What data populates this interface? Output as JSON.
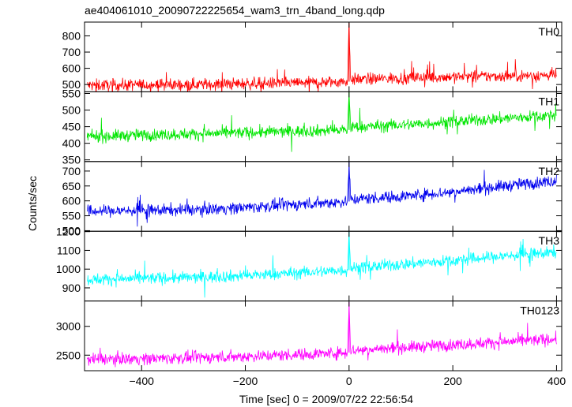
{
  "figure": {
    "title": "ae404061010_20090722225654_wam3_trn_4band_long.qdp",
    "xlabel": "Time [sec] 0 = 2009/07/22 22:56:54",
    "ylabel": "Counts/sec"
  },
  "chart_data": [
    {
      "type": "line",
      "name": "TH0",
      "color": "#ff0000",
      "xlim": [
        -510,
        410
      ],
      "ylim": [
        455,
        885
      ],
      "yticks": [
        500,
        600,
        700,
        800
      ],
      "series": [
        {
          "name": "TH0",
          "x": [
            -500,
            -400,
            -300,
            -200,
            -100,
            -3,
            0,
            3,
            100,
            200,
            300,
            400
          ],
          "values": [
            495,
            498,
            500,
            505,
            510,
            518,
            880,
            530,
            540,
            548,
            552,
            558
          ]
        }
      ]
    },
    {
      "type": "line",
      "name": "TH1",
      "color": "#00e600",
      "xlim": [
        -510,
        410
      ],
      "ylim": [
        345,
        555
      ],
      "yticks": [
        350,
        400,
        450,
        500,
        550
      ],
      "series": [
        {
          "name": "TH1",
          "x": [
            -500,
            -400,
            -300,
            -200,
            -100,
            -3,
            0,
            3,
            100,
            200,
            300,
            400
          ],
          "values": [
            420,
            425,
            428,
            432,
            436,
            440,
            555,
            448,
            455,
            465,
            475,
            485
          ]
        }
      ]
    },
    {
      "type": "line",
      "name": "TH2",
      "color": "#0000ee",
      "xlim": [
        -510,
        410
      ],
      "ylim": [
        498,
        732
      ],
      "yticks": [
        500,
        550,
        600,
        650,
        700
      ],
      "series": [
        {
          "name": "TH2",
          "x": [
            -500,
            -400,
            -300,
            -200,
            -100,
            -3,
            0,
            3,
            100,
            200,
            300,
            400
          ],
          "values": [
            565,
            568,
            570,
            578,
            588,
            598,
            730,
            605,
            615,
            630,
            650,
            668
          ]
        }
      ]
    },
    {
      "type": "line",
      "name": "TH3",
      "color": "#00ffff",
      "xlim": [
        -510,
        410
      ],
      "ylim": [
        830,
        1202
      ],
      "yticks": [
        900,
        1000,
        1100,
        1200
      ],
      "series": [
        {
          "name": "TH3",
          "x": [
            -500,
            -400,
            -300,
            -200,
            -100,
            -3,
            0,
            3,
            100,
            200,
            300,
            400
          ],
          "values": [
            945,
            950,
            955,
            965,
            980,
            995,
            1200,
            1005,
            1025,
            1045,
            1070,
            1090
          ]
        }
      ]
    },
    {
      "type": "line",
      "name": "TH0123",
      "color": "#ff00ff",
      "xlim": [
        -510,
        410
      ],
      "ylim": [
        2230,
        3440
      ],
      "yticks": [
        2500,
        3000
      ],
      "series": [
        {
          "name": "TH0123",
          "x": [
            -500,
            -400,
            -300,
            -200,
            -100,
            -3,
            0,
            3,
            100,
            200,
            300,
            400
          ],
          "values": [
            2430,
            2440,
            2455,
            2480,
            2510,
            2545,
            3420,
            2580,
            2630,
            2680,
            2730,
            2780
          ]
        }
      ]
    }
  ],
  "xaxis": {
    "ticks": [
      -400,
      -200,
      0,
      200,
      400
    ],
    "tick_labels": [
      "−400",
      "−200",
      "0",
      "200",
      "400"
    ]
  }
}
